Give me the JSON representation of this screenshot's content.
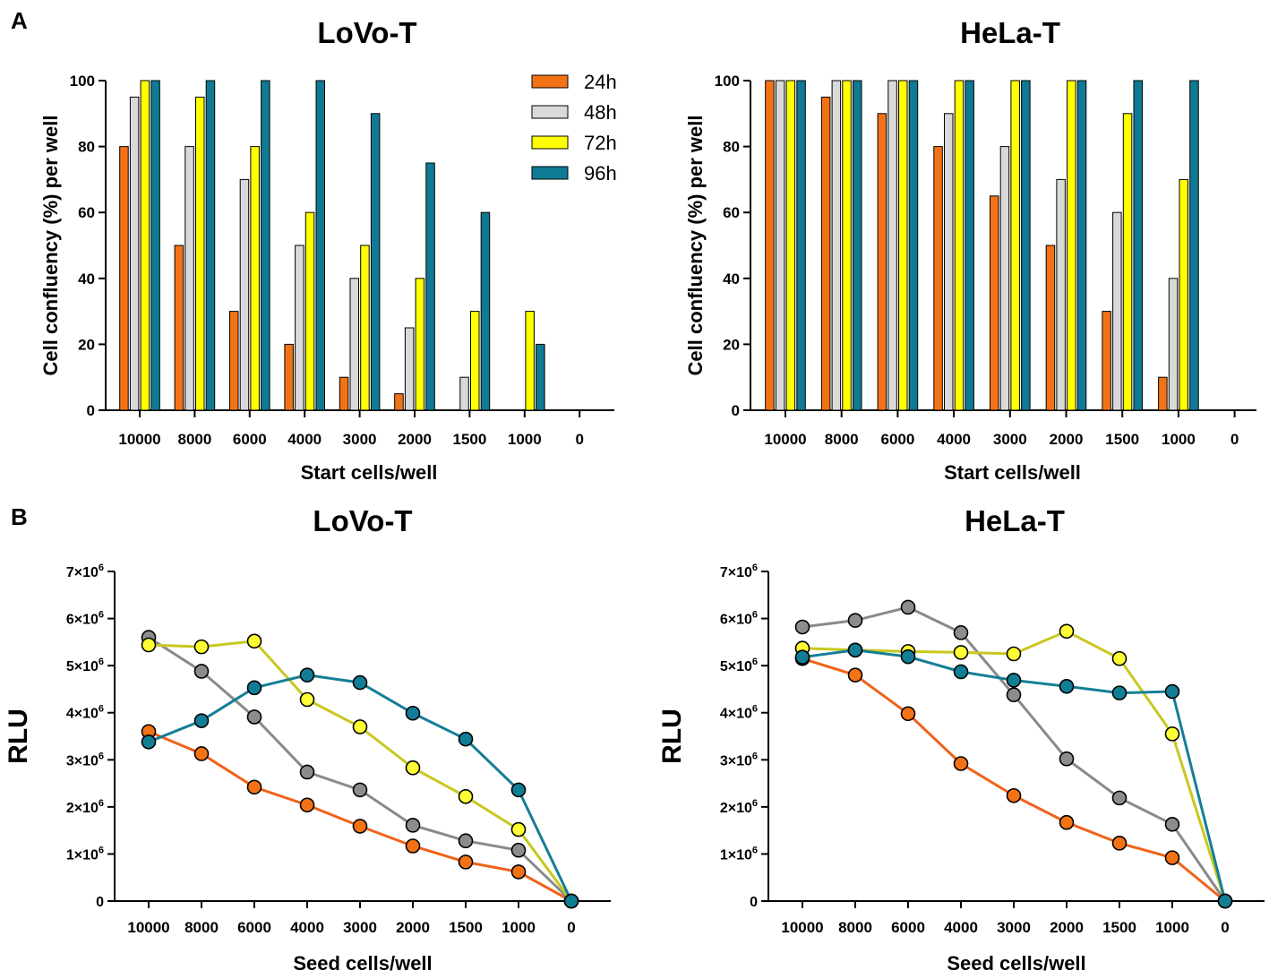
{
  "panels": {
    "a_label": "A",
    "b_label": "B"
  },
  "colors": {
    "24h": "#F47216",
    "48h": "#D9D9D9",
    "72h": "#FFFF00",
    "96h": "#0E7A94",
    "line_24h": "#F0621A",
    "line_48h": "#8A8A8A",
    "line_72h": "#C8C81E",
    "line_96h": "#157E97",
    "marker_48h": "#8C8C8C",
    "marker_72h": "#FFFF33",
    "marker_96h": "#117E95"
  },
  "chart_data": [
    {
      "id": "a-lovo",
      "type": "bar",
      "title": "LoVo-T",
      "xlabel": "Start cells/well",
      "ylabel": "Cell confluency (%) per well",
      "ylim": [
        0,
        100
      ],
      "yticks": [
        "0",
        "20",
        "40",
        "60",
        "80",
        "100"
      ],
      "categories": [
        "10000",
        "8000",
        "6000",
        "4000",
        "3000",
        "2000",
        "1500",
        "1000",
        "0"
      ],
      "legend_position": "top-right",
      "series": [
        {
          "name": "24h",
          "values": [
            80,
            50,
            30,
            20,
            10,
            5,
            0,
            0,
            0
          ]
        },
        {
          "name": "48h",
          "values": [
            95,
            80,
            70,
            50,
            40,
            25,
            10,
            0,
            0
          ]
        },
        {
          "name": "72h",
          "values": [
            100,
            95,
            80,
            60,
            50,
            40,
            30,
            30,
            0
          ]
        },
        {
          "name": "96h",
          "values": [
            100,
            100,
            100,
            100,
            90,
            75,
            60,
            20,
            0
          ]
        }
      ]
    },
    {
      "id": "a-hela",
      "type": "bar",
      "title": "HeLa-T",
      "xlabel": "Start cells/well",
      "ylabel": "Cell confluency (%) per well",
      "ylim": [
        0,
        100
      ],
      "yticks": [
        "0",
        "20",
        "40",
        "60",
        "80",
        "100"
      ],
      "categories": [
        "10000",
        "8000",
        "6000",
        "4000",
        "3000",
        "2000",
        "1500",
        "1000",
        "0"
      ],
      "series": [
        {
          "name": "24h",
          "values": [
            100,
            95,
            90,
            80,
            65,
            50,
            30,
            10,
            0
          ]
        },
        {
          "name": "48h",
          "values": [
            100,
            100,
            100,
            90,
            80,
            70,
            60,
            40,
            0
          ]
        },
        {
          "name": "72h",
          "values": [
            100,
            100,
            100,
            100,
            100,
            100,
            90,
            70,
            0
          ]
        },
        {
          "name": "96h",
          "values": [
            100,
            100,
            100,
            100,
            100,
            100,
            100,
            100,
            0
          ]
        }
      ]
    },
    {
      "id": "b-lovo",
      "type": "line",
      "title": "LoVo-T",
      "xlabel": "Seed cells/well",
      "ylabel": "RLU",
      "ylim": [
        0,
        7000000
      ],
      "yticks": [
        {
          "value": 0,
          "mant": "0",
          "exp": ""
        },
        {
          "value": 1000000,
          "mant": "1×10",
          "exp": "6"
        },
        {
          "value": 2000000,
          "mant": "2×10",
          "exp": "6"
        },
        {
          "value": 3000000,
          "mant": "3×10",
          "exp": "6"
        },
        {
          "value": 4000000,
          "mant": "4×10",
          "exp": "6"
        },
        {
          "value": 5000000,
          "mant": "5×10",
          "exp": "6"
        },
        {
          "value": 6000000,
          "mant": "6×10",
          "exp": "6"
        },
        {
          "value": 7000000,
          "mant": "7×10",
          "exp": "6"
        }
      ],
      "categories": [
        "10000",
        "8000",
        "6000",
        "4000",
        "3000",
        "2000",
        "1500",
        "1000",
        "0"
      ],
      "series": [
        {
          "name": "24h",
          "values": [
            3600000,
            3130000,
            2420000,
            2040000,
            1590000,
            1170000,
            830000,
            620000,
            0
          ]
        },
        {
          "name": "48h",
          "values": [
            5600000,
            4880000,
            3910000,
            2740000,
            2360000,
            1610000,
            1280000,
            1080000,
            0
          ]
        },
        {
          "name": "72h",
          "values": [
            5440000,
            5400000,
            5520000,
            4280000,
            3700000,
            2830000,
            2220000,
            1520000,
            0
          ]
        },
        {
          "name": "96h",
          "values": [
            3380000,
            3830000,
            4530000,
            4800000,
            4640000,
            3990000,
            3440000,
            2360000,
            0
          ]
        }
      ]
    },
    {
      "id": "b-hela",
      "type": "line",
      "title": "HeLa-T",
      "xlabel": "Seed cells/well",
      "ylabel": "RLU",
      "ylim": [
        0,
        7000000
      ],
      "yticks": [
        {
          "value": 0,
          "mant": "0",
          "exp": ""
        },
        {
          "value": 1000000,
          "mant": "1×10",
          "exp": "6"
        },
        {
          "value": 2000000,
          "mant": "2×10",
          "exp": "6"
        },
        {
          "value": 3000000,
          "mant": "3×10",
          "exp": "6"
        },
        {
          "value": 4000000,
          "mant": "4×10",
          "exp": "6"
        },
        {
          "value": 5000000,
          "mant": "5×10",
          "exp": "6"
        },
        {
          "value": 6000000,
          "mant": "6×10",
          "exp": "6"
        },
        {
          "value": 7000000,
          "mant": "7×10",
          "exp": "6"
        }
      ],
      "categories": [
        "10000",
        "8000",
        "6000",
        "4000",
        "3000",
        "2000",
        "1500",
        "1000",
        "0"
      ],
      "series": [
        {
          "name": "24h",
          "values": [
            5150000,
            4800000,
            3980000,
            2920000,
            2240000,
            1670000,
            1230000,
            920000,
            0
          ]
        },
        {
          "name": "48h",
          "values": [
            5820000,
            5960000,
            6240000,
            5700000,
            4380000,
            3020000,
            2190000,
            1630000,
            0
          ]
        },
        {
          "name": "72h",
          "values": [
            5370000,
            5330000,
            5300000,
            5280000,
            5250000,
            5730000,
            5150000,
            3550000,
            0
          ]
        },
        {
          "name": "96h",
          "values": [
            5180000,
            5330000,
            5190000,
            4870000,
            4690000,
            4560000,
            4420000,
            4450000,
            0
          ]
        }
      ]
    }
  ]
}
